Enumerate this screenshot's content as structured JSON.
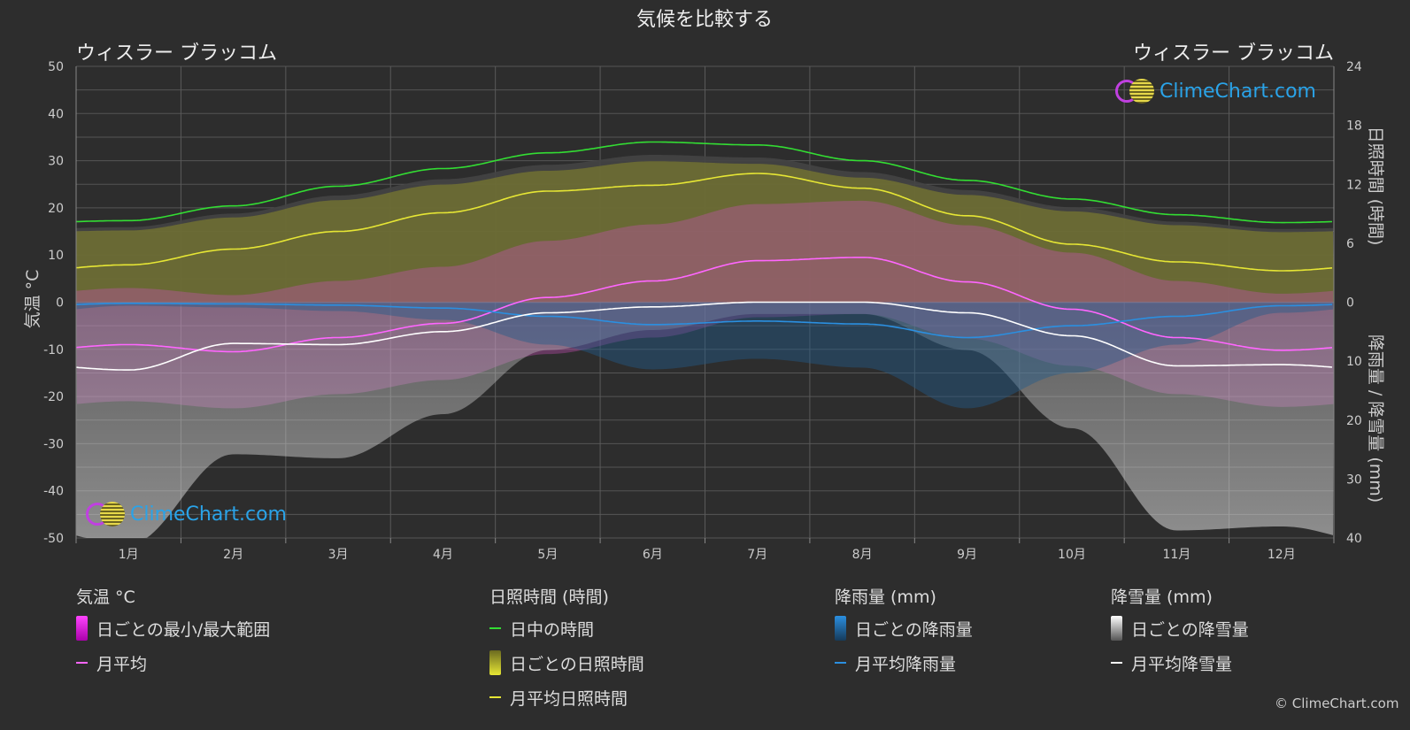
{
  "title": "気候を比較する",
  "location_left": "ウィスラー ブラッコム",
  "location_right": "ウィスラー ブラッコム",
  "logo_text": "ClimeChart.com",
  "copyright": "© ClimeChart.com",
  "chart_data": {
    "type": "area",
    "categories": [
      "1月",
      "2月",
      "3月",
      "4月",
      "5月",
      "6月",
      "7月",
      "8月",
      "9月",
      "10月",
      "11月",
      "12月"
    ],
    "y_left": {
      "label": "気温 °C",
      "range": [
        -50,
        50
      ],
      "ticks": [
        50,
        40,
        30,
        20,
        10,
        0,
        -10,
        -20,
        -30,
        -40,
        -50
      ]
    },
    "y_right_top": {
      "label": "日照時間 (時間)",
      "range": [
        0,
        24
      ],
      "ticks": [
        24,
        18,
        12,
        6,
        0
      ]
    },
    "y_right_bottom": {
      "label": "降雨量 / 降雪量 (mm)",
      "range": [
        0,
        40
      ],
      "ticks": [
        0,
        10,
        20,
        30,
        40
      ]
    },
    "grid": true,
    "series": [
      {
        "name": "日中の時間",
        "axis": "sun",
        "color": "#33dd33",
        "values": [
          8.3,
          9.8,
          11.8,
          13.6,
          15.2,
          16.3,
          16.0,
          14.4,
          12.4,
          10.5,
          8.9,
          8.1
        ]
      },
      {
        "name": "月平均日照時間",
        "axis": "sun",
        "color": "#e6e634",
        "values": [
          3.8,
          5.4,
          7.2,
          9.1,
          11.3,
          11.9,
          13.1,
          11.6,
          8.8,
          5.9,
          4.1,
          3.2
        ]
      },
      {
        "name": "月平均",
        "axis": "temp",
        "color": "#ff66ff",
        "values": [
          -9.0,
          -10.5,
          -7.5,
          -4.5,
          1.0,
          4.5,
          8.8,
          9.5,
          4.3,
          -1.5,
          -7.5,
          -10.2
        ]
      },
      {
        "name": "月平均降雨量",
        "axis": "precip",
        "color": "#2b8fe0",
        "values": [
          0.2,
          0.3,
          0.5,
          1.0,
          2.4,
          3.8,
          3.2,
          3.7,
          6.0,
          4.0,
          2.4,
          0.6
        ]
      },
      {
        "name": "月平均降雪量",
        "axis": "precip",
        "color": "#ffffff",
        "values": [
          11.5,
          7.0,
          7.2,
          5.0,
          1.8,
          0.8,
          0.0,
          0.0,
          1.8,
          5.7,
          10.8,
          10.6
        ]
      }
    ]
  },
  "legend": {
    "temp": {
      "header": "気温 °C",
      "items": [
        "日ごとの最小/最大範囲",
        "月平均"
      ]
    },
    "sun": {
      "header": "日照時間 (時間)",
      "items": [
        "日中の時間",
        "日ごとの日照時間",
        "月平均日照時間"
      ]
    },
    "rain": {
      "header": "降雨量 (mm)",
      "items": [
        "日ごとの降雨量",
        "月平均降雨量"
      ]
    },
    "snow": {
      "header": "降雪量 (mm)",
      "items": [
        "日ごとの降雪量",
        "月平均降雪量"
      ]
    }
  }
}
